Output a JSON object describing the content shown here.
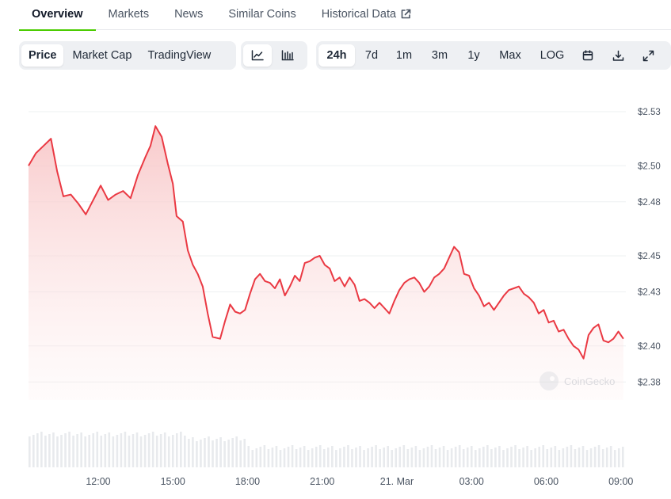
{
  "tabs": [
    {
      "label": "Overview"
    },
    {
      "label": "Markets"
    },
    {
      "label": "News"
    },
    {
      "label": "Similar Coins"
    },
    {
      "label": "Historical Data"
    }
  ],
  "toolbar": {
    "view_options": [
      "Price",
      "Market Cap",
      "TradingView"
    ],
    "selected_view": "Price",
    "chart_styles": [
      "line-chart-icon",
      "candlestick-icon"
    ],
    "selected_style": "line-chart-icon",
    "ranges": [
      "24h",
      "7d",
      "1m",
      "3m",
      "1y",
      "Max",
      "LOG"
    ],
    "selected_range": "24h",
    "tools": [
      "calendar-icon",
      "download-icon",
      "fullscreen-icon"
    ]
  },
  "watermark": "CoinGecko",
  "colors": {
    "line": "#ea3943",
    "fill": "#f8c7c8",
    "accent": "#4bcc00",
    "volume": "#e8eaed"
  },
  "chart_data": {
    "type": "area",
    "x_ticks": [
      "12:00",
      "15:00",
      "18:00",
      "21:00",
      "21. Mar",
      "03:00",
      "06:00",
      "09:00"
    ],
    "y_ticks": [
      "$2.38",
      "$2.40",
      "$2.43",
      "$2.45",
      "$2.48",
      "$2.50",
      "$2.53"
    ],
    "ylim": [
      2.37,
      2.53
    ],
    "x_range_hours": [
      9.2,
      33.2
    ],
    "grid": true,
    "series": [
      {
        "points": [
          [
            9.2,
            2.5
          ],
          [
            9.5,
            2.507
          ],
          [
            9.8,
            2.511
          ],
          [
            10.1,
            2.515
          ],
          [
            10.35,
            2.497
          ],
          [
            10.6,
            2.483
          ],
          [
            10.9,
            2.484
          ],
          [
            11.2,
            2.479
          ],
          [
            11.5,
            2.473
          ],
          [
            11.8,
            2.481
          ],
          [
            12.1,
            2.489
          ],
          [
            12.4,
            2.481
          ],
          [
            12.7,
            2.484
          ],
          [
            13.0,
            2.486
          ],
          [
            13.3,
            2.482
          ],
          [
            13.6,
            2.495
          ],
          [
            13.9,
            2.505
          ],
          [
            14.1,
            2.511
          ],
          [
            14.3,
            2.522
          ],
          [
            14.55,
            2.516
          ],
          [
            14.8,
            2.501
          ],
          [
            15.0,
            2.49
          ],
          [
            15.15,
            2.472
          ],
          [
            15.4,
            2.469
          ],
          [
            15.6,
            2.453
          ],
          [
            15.8,
            2.445
          ],
          [
            16.0,
            2.44
          ],
          [
            16.2,
            2.433
          ],
          [
            16.4,
            2.418
          ],
          [
            16.6,
            2.405
          ],
          [
            16.9,
            2.404
          ],
          [
            17.1,
            2.414
          ],
          [
            17.3,
            2.423
          ],
          [
            17.5,
            2.419
          ],
          [
            17.7,
            2.418
          ],
          [
            17.9,
            2.42
          ],
          [
            18.1,
            2.429
          ],
          [
            18.3,
            2.437
          ],
          [
            18.5,
            2.44
          ],
          [
            18.7,
            2.436
          ],
          [
            18.9,
            2.435
          ],
          [
            19.1,
            2.432
          ],
          [
            19.3,
            2.437
          ],
          [
            19.5,
            2.428
          ],
          [
            19.7,
            2.433
          ],
          [
            19.9,
            2.439
          ],
          [
            20.1,
            2.436
          ],
          [
            20.3,
            2.446
          ],
          [
            20.5,
            2.447
          ],
          [
            20.7,
            2.449
          ],
          [
            20.9,
            2.45
          ],
          [
            21.1,
            2.445
          ],
          [
            21.3,
            2.443
          ],
          [
            21.5,
            2.436
          ],
          [
            21.7,
            2.438
          ],
          [
            21.9,
            2.433
          ],
          [
            22.1,
            2.438
          ],
          [
            22.3,
            2.434
          ],
          [
            22.5,
            2.425
          ],
          [
            22.7,
            2.426
          ],
          [
            22.9,
            2.424
          ],
          [
            23.1,
            2.421
          ],
          [
            23.3,
            2.424
          ],
          [
            23.5,
            2.421
          ],
          [
            23.7,
            2.418
          ],
          [
            23.9,
            2.425
          ],
          [
            24.1,
            2.431
          ],
          [
            24.3,
            2.435
          ],
          [
            24.5,
            2.437
          ],
          [
            24.7,
            2.438
          ],
          [
            24.9,
            2.435
          ],
          [
            25.1,
            2.43
          ],
          [
            25.3,
            2.433
          ],
          [
            25.5,
            2.438
          ],
          [
            25.7,
            2.44
          ],
          [
            25.9,
            2.443
          ],
          [
            26.1,
            2.449
          ],
          [
            26.3,
            2.455
          ],
          [
            26.5,
            2.452
          ],
          [
            26.7,
            2.44
          ],
          [
            26.9,
            2.439
          ],
          [
            27.1,
            2.432
          ],
          [
            27.3,
            2.428
          ],
          [
            27.5,
            2.422
          ],
          [
            27.7,
            2.424
          ],
          [
            27.9,
            2.42
          ],
          [
            28.1,
            2.424
          ],
          [
            28.3,
            2.428
          ],
          [
            28.5,
            2.431
          ],
          [
            28.7,
            2.432
          ],
          [
            28.9,
            2.433
          ],
          [
            29.1,
            2.429
          ],
          [
            29.3,
            2.427
          ],
          [
            29.5,
            2.424
          ],
          [
            29.7,
            2.418
          ],
          [
            29.9,
            2.42
          ],
          [
            30.1,
            2.413
          ],
          [
            30.3,
            2.414
          ],
          [
            30.5,
            2.408
          ],
          [
            30.7,
            2.409
          ],
          [
            30.9,
            2.404
          ],
          [
            31.1,
            2.4
          ],
          [
            31.3,
            2.398
          ],
          [
            31.5,
            2.393
          ],
          [
            31.7,
            2.406
          ],
          [
            31.9,
            2.41
          ],
          [
            32.1,
            2.412
          ],
          [
            32.3,
            2.403
          ],
          [
            32.5,
            2.402
          ],
          [
            32.7,
            2.404
          ],
          [
            32.9,
            2.408
          ],
          [
            33.1,
            2.404
          ]
        ]
      }
    ]
  }
}
